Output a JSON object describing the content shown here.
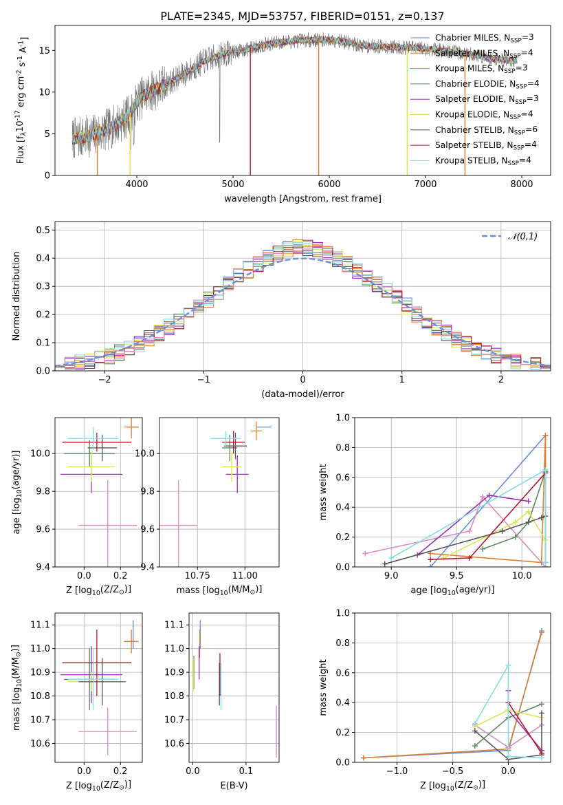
{
  "figure_title": "PLATE=2345, MJD=53757, FIBERID=0151, z=0.137",
  "palette": [
    "#6a8fdc",
    "#de7e2d",
    "#d98dc1",
    "#5d8a5f",
    "#9b2fb0",
    "#e0e355",
    "#555555",
    "#b01828",
    "#84dde4"
  ],
  "legend_entries": [
    {
      "name": "Chabrier MILES",
      "nssp": "3",
      "color": "#6a8fdc"
    },
    {
      "name": "Salpeter MILES",
      "nssp": "4",
      "color": "#de7e2d"
    },
    {
      "name": "Kroupa MILES",
      "nssp": "3",
      "color": "#de7e2d"
    },
    {
      "name": "Chabrier ELODIE",
      "nssp": "4",
      "color": "#5d8a5f"
    },
    {
      "name": "Salpeter ELODIE",
      "nssp": "3",
      "color": "#9b2fb0"
    },
    {
      "name": "Kroupa ELODIE",
      "nssp": "4",
      "color": "#e0e355"
    },
    {
      "name": "Chabrier STELIB",
      "nssp": "6",
      "color": "#555555"
    },
    {
      "name": "Salpeter STELIB",
      "nssp": "4",
      "color": "#b01828"
    },
    {
      "name": "Kroupa STELIB",
      "nssp": "4",
      "color": "#84dde4"
    }
  ],
  "chart_data": [
    {
      "id": "spectrum",
      "type": "line",
      "xlabel": "wavelength [Angstrom, rest frame]",
      "ylabel": "Flux [f$_\\lambda$10$^{-17}$ erg cm$^{-2}$ s$^{-1}$ A$^{-1}$]",
      "xlim": [
        3150,
        8300
      ],
      "ylim": [
        0,
        18
      ],
      "xticks": [
        4000,
        5000,
        6000,
        7000,
        8000
      ],
      "yticks": [
        0,
        5,
        10,
        15
      ],
      "grid": false,
      "legend": "upper right",
      "continuum": {
        "x": [
          3330,
          3500,
          3700,
          3900,
          4000,
          4100,
          4300,
          4500,
          4700,
          4900,
          5100,
          5300,
          5500,
          5700,
          5900,
          6100,
          6300,
          6500,
          6700,
          6900,
          7100,
          7300,
          7500,
          7700,
          7900
        ],
        "y": [
          4.4,
          4.7,
          5.5,
          7.0,
          8.8,
          9.8,
          10.9,
          12.2,
          13.7,
          14.6,
          15.0,
          15.6,
          16.0,
          16.2,
          16.3,
          16.2,
          15.6,
          15.5,
          15.4,
          15.3,
          15.1,
          14.8,
          14.5,
          14.0,
          13.8
        ]
      }
    },
    {
      "id": "residuals",
      "type": "line",
      "xlabel": "(data-model)/error",
      "ylabel": "Normed distribution",
      "xlim": [
        -2.5,
        2.5
      ],
      "ylim": [
        0,
        0.53
      ],
      "xticks": [
        -2,
        -1,
        0,
        1,
        2
      ],
      "yticks": [
        0.0,
        0.1,
        0.2,
        0.3,
        0.4,
        0.5
      ],
      "grid": true,
      "legend": "upper right",
      "reference": {
        "name": "$\\mathcal{N}(0,1)$",
        "mean": 0,
        "sigma": 1,
        "color": "#6a8fdc"
      }
    },
    {
      "id": "age-vs-z",
      "type": "scatter",
      "xlabel": "Z [log$_{10}$(Z/Z$_\\odot$)]",
      "ylabel": "age  [log$_{10}$(age/yr)]",
      "xlim": [
        -0.16,
        0.32
      ],
      "ylim": [
        9.4,
        10.19
      ],
      "xticks": [
        0.0,
        0.2
      ],
      "yticks": [
        9.4,
        9.6,
        9.8,
        10.0
      ],
      "grid": true,
      "points": [
        {
          "color": "#6a8fdc",
          "x": 0.27,
          "y": 10.14,
          "xerr": 0.03,
          "yerr": 0.0
        },
        {
          "color": "#de7e2d",
          "x": 0.26,
          "y": 10.14,
          "xerr": 0.04,
          "yerr": 0.06
        },
        {
          "color": "#d98dc1",
          "x": 0.13,
          "y": 9.62,
          "xerr": 0.16,
          "yerr": 0.24
        },
        {
          "color": "#5d8a5f",
          "x": 0.03,
          "y": 10.0,
          "xerr": 0.14,
          "yerr": 0.07
        },
        {
          "color": "#9b2fb0",
          "x": 0.04,
          "y": 9.89,
          "xerr": 0.17,
          "yerr": 0.1
        },
        {
          "color": "#e0e355",
          "x": 0.04,
          "y": 9.93,
          "xerr": 0.13,
          "yerr": 0.08
        },
        {
          "color": "#555555",
          "x": 0.1,
          "y": 10.03,
          "xerr": 0.08,
          "yerr": 0.07
        },
        {
          "color": "#b01828",
          "x": 0.07,
          "y": 10.06,
          "xerr": 0.19,
          "yerr": 0.05
        },
        {
          "color": "#84dde4",
          "x": 0.05,
          "y": 10.08,
          "xerr": 0.14,
          "yerr": 0.06
        }
      ]
    },
    {
      "id": "age-vs-mass",
      "type": "scatter",
      "xlabel": "mass [log$_{10}$(M/M$_\\odot$)]",
      "ylabel": "",
      "xlim": [
        10.55,
        11.18
      ],
      "ylim": [
        9.4,
        10.19
      ],
      "xticks": [
        10.75,
        11.0
      ],
      "yticks": [
        9.4,
        9.6,
        9.8,
        10.0
      ],
      "grid": true,
      "points": [
        {
          "color": "#6a8fdc",
          "x": 11.1,
          "y": 10.14,
          "xerr": 0.04,
          "yerr": 0.0
        },
        {
          "color": "#de7e2d",
          "x": 11.06,
          "y": 10.12,
          "xerr": 0.03,
          "yerr": 0.05
        },
        {
          "color": "#d98dc1",
          "x": 10.65,
          "y": 9.62,
          "xerr": 0.1,
          "yerr": 0.24
        },
        {
          "color": "#5d8a5f",
          "x": 10.92,
          "y": 10.03,
          "xerr": 0.04,
          "yerr": 0.07
        },
        {
          "color": "#9b2fb0",
          "x": 10.96,
          "y": 9.89,
          "xerr": 0.06,
          "yerr": 0.1
        },
        {
          "color": "#e0e355",
          "x": 10.93,
          "y": 9.93,
          "xerr": 0.05,
          "yerr": 0.08
        },
        {
          "color": "#555555",
          "x": 10.95,
          "y": 10.04,
          "xerr": 0.06,
          "yerr": 0.07
        },
        {
          "color": "#b01828",
          "x": 10.94,
          "y": 10.06,
          "xerr": 0.06,
          "yerr": 0.06
        },
        {
          "color": "#84dde4",
          "x": 10.9,
          "y": 10.08,
          "xerr": 0.08,
          "yerr": 0.04
        }
      ]
    },
    {
      "id": "mass-weight-vs-age",
      "type": "line",
      "xlabel": "age  [log$_{10}$(age/yr)]",
      "ylabel": "mass weight",
      "xlim": [
        8.72,
        10.22
      ],
      "ylim": [
        0,
        1.0
      ],
      "xticks": [
        9.0,
        9.5,
        10.0
      ],
      "yticks": [
        0.0,
        0.2,
        0.4,
        0.6,
        0.8,
        1.0
      ],
      "grid": true,
      "series": [
        {
          "color": "#6a8fdc",
          "x": [
            9.3,
            10.18,
            10.18
          ],
          "y": [
            0.0,
            0.88,
            0.03
          ]
        },
        {
          "color": "#de7e2d",
          "x": [
            9.3,
            10.15,
            10.18,
            10.18
          ],
          "y": [
            0.09,
            0.03,
            0.88,
            0.0
          ]
        },
        {
          "color": "#d98dc1",
          "x": [
            8.8,
            9.6,
            9.7,
            10.18
          ],
          "y": [
            0.09,
            0.24,
            0.47,
            0.0
          ]
        },
        {
          "color": "#5d8a5f",
          "x": [
            9.7,
            9.95,
            10.05,
            10.18
          ],
          "y": [
            0.12,
            0.2,
            0.3,
            0.64
          ]
        },
        {
          "color": "#9b2fb0",
          "x": [
            9.2,
            9.75,
            10.05
          ],
          "y": [
            0.08,
            0.48,
            0.44
          ]
        },
        {
          "color": "#e0e355",
          "x": [
            9.4,
            9.95,
            10.05,
            10.18
          ],
          "y": [
            0.06,
            0.3,
            0.37,
            0.18
          ]
        },
        {
          "color": "#555555",
          "x": [
            8.95,
            9.85,
            10.05,
            10.15,
            10.18
          ],
          "y": [
            0.02,
            0.24,
            0.3,
            0.33,
            0.34
          ]
        },
        {
          "color": "#b01828",
          "x": [
            9.3,
            9.6,
            10.18
          ],
          "y": [
            0.05,
            0.06,
            0.63
          ]
        },
        {
          "color": "#84dde4",
          "x": [
            9.0,
            10.18,
            10.18
          ],
          "y": [
            0.06,
            0.65,
            0.03
          ]
        }
      ]
    },
    {
      "id": "mass-vs-z",
      "type": "scatter",
      "xlabel": "Z [log$_{10}$(Z/Z$_\\odot$)]",
      "ylabel": "mass [log$_{10}$(M/M$_\\odot$)]",
      "xlim": [
        -0.16,
        0.32
      ],
      "ylim": [
        10.52,
        11.15
      ],
      "xticks": [
        0.0,
        0.2
      ],
      "yticks": [
        10.6,
        10.7,
        10.8,
        10.9,
        11.0,
        11.1
      ],
      "grid": true,
      "points": [
        {
          "color": "#6a8fdc",
          "x": 0.27,
          "y": 11.06,
          "xerr": 0.0,
          "yerr": 0.06
        },
        {
          "color": "#de7e2d",
          "x": 0.26,
          "y": 11.03,
          "xerr": 0.04,
          "yerr": 0.05
        },
        {
          "color": "#d98dc1",
          "x": 0.13,
          "y": 10.65,
          "xerr": 0.16,
          "yerr": 0.1
        },
        {
          "color": "#5d8a5f",
          "x": 0.03,
          "y": 10.87,
          "xerr": 0.14,
          "yerr": 0.13
        },
        {
          "color": "#9b2fb0",
          "x": 0.04,
          "y": 10.89,
          "xerr": 0.17,
          "yerr": 0.12
        },
        {
          "color": "#e0e355",
          "x": 0.04,
          "y": 10.86,
          "xerr": 0.13,
          "yerr": 0.04
        },
        {
          "color": "#555555",
          "x": 0.1,
          "y": 10.86,
          "xerr": 0.13,
          "yerr": 0.1
        },
        {
          "color": "#b01828",
          "x": 0.07,
          "y": 10.94,
          "xerr": 0.19,
          "yerr": 0.14
        },
        {
          "color": "#84dde4",
          "x": 0.05,
          "y": 10.87,
          "xerr": 0.14,
          "yerr": 0.13
        }
      ]
    },
    {
      "id": "mass-vs-ebv",
      "type": "scatter",
      "xlabel": "E(B-V)",
      "ylabel": "",
      "xlim": [
        -0.007,
        0.162
      ],
      "ylim": [
        10.52,
        11.15
      ],
      "xticks": [
        0.0,
        0.1
      ],
      "yticks": [
        10.6,
        10.7,
        10.8,
        10.9,
        11.0,
        11.1
      ],
      "grid": true,
      "points": [
        {
          "color": "#6a8fdc",
          "x": 0.014,
          "y": 11.06,
          "xerr": 0.0,
          "yerr": 0.06
        },
        {
          "color": "#de7e2d",
          "x": 0.013,
          "y": 11.02,
          "xerr": 0.0,
          "yerr": 0.06
        },
        {
          "color": "#d98dc1",
          "x": 0.157,
          "y": 10.65,
          "xerr": 0.0,
          "yerr": 0.11
        },
        {
          "color": "#5d8a5f",
          "x": 0.002,
          "y": 10.9,
          "xerr": 0.0,
          "yerr": 0.07
        },
        {
          "color": "#9b2fb0",
          "x": 0.012,
          "y": 10.94,
          "xerr": 0.0,
          "yerr": 0.07
        },
        {
          "color": "#e0e355",
          "x": 0.001,
          "y": 10.89,
          "xerr": 0.0,
          "yerr": 0.07
        },
        {
          "color": "#555555",
          "x": 0.05,
          "y": 10.85,
          "xerr": 0.0,
          "yerr": 0.09
        },
        {
          "color": "#b01828",
          "x": 0.051,
          "y": 10.89,
          "xerr": 0.0,
          "yerr": 0.09
        },
        {
          "color": "#84dde4",
          "x": 0.053,
          "y": 10.84,
          "xerr": 0.0,
          "yerr": 0.1
        }
      ]
    },
    {
      "id": "mass-weight-vs-z",
      "type": "line",
      "xlabel": "Z [log$_{10}$(Z/Z$_\\odot$)]",
      "ylabel": "mass weight",
      "xlim": [
        -1.38,
        0.38
      ],
      "ylim": [
        0,
        1.0
      ],
      "xticks": [
        -1.0,
        -0.5,
        0.0
      ],
      "yticks": [
        0.0,
        0.2,
        0.4,
        0.6,
        0.8,
        1.0
      ],
      "grid": true,
      "series": [
        {
          "color": "#6a8fdc",
          "x": [
            -1.3,
            0.0,
            0.3
          ],
          "y": [
            0.03,
            0.08,
            0.88
          ]
        },
        {
          "color": "#de7e2d",
          "x": [
            -1.3,
            0.0,
            0.3
          ],
          "y": [
            0.03,
            0.09,
            0.87
          ]
        },
        {
          "color": "#d98dc1",
          "x": [
            -0.3,
            0.0,
            0.3
          ],
          "y": [
            0.25,
            0.1,
            0.25
          ]
        },
        {
          "color": "#5d8a5f",
          "x": [
            -0.3,
            0.0,
            0.3
          ],
          "y": [
            0.11,
            0.3,
            0.39
          ]
        },
        {
          "color": "#9b2fb0",
          "x": [
            0.0,
            0.0,
            0.3
          ],
          "y": [
            0.48,
            0.35,
            0.08
          ]
        },
        {
          "color": "#e0e355",
          "x": [
            -0.3,
            0.0,
            0.3
          ],
          "y": [
            0.24,
            0.35,
            0.3
          ]
        },
        {
          "color": "#555555",
          "x": [
            -0.3,
            0.0,
            0.3,
            0.3
          ],
          "y": [
            0.21,
            0.02,
            0.05,
            0.33
          ]
        },
        {
          "color": "#b01828",
          "x": [
            0.0,
            0.3
          ],
          "y": [
            0.4,
            0.06
          ]
        },
        {
          "color": "#84dde4",
          "x": [
            -0.3,
            0.0,
            0.0,
            0.3
          ],
          "y": [
            0.26,
            0.65,
            0.04,
            0.03
          ]
        }
      ]
    }
  ]
}
